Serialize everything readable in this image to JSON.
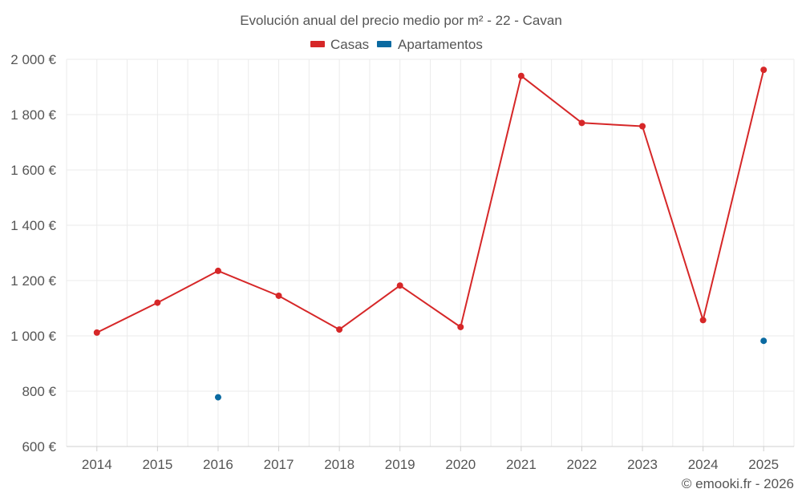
{
  "chart_data": {
    "type": "line",
    "title": "Evolución anual del precio medio por m² - 22 - Cavan",
    "categories": [
      "2014",
      "2015",
      "2016",
      "2017",
      "2018",
      "2019",
      "2020",
      "2021",
      "2022",
      "2023",
      "2024",
      "2025"
    ],
    "series": [
      {
        "name": "Casas",
        "color": "#d62728",
        "values": [
          1012,
          1120,
          1235,
          1145,
          1023,
          1182,
          1032,
          1940,
          1770,
          1758,
          1057,
          1962
        ]
      },
      {
        "name": "Apartamentos",
        "color": "#0a6aa1",
        "values": [
          null,
          null,
          778,
          null,
          null,
          null,
          null,
          null,
          null,
          null,
          null,
          982
        ]
      }
    ],
    "ylim": [
      600,
      2000
    ],
    "yticks": [
      600,
      800,
      1000,
      1200,
      1400,
      1600,
      1800,
      2000
    ],
    "ytick_labels": [
      "600 €",
      "800 €",
      "1 000 €",
      "1 200 €",
      "1 400 €",
      "1 600 €",
      "1 800 €",
      "2 000 €"
    ],
    "grid": true,
    "legend_position": "top-center",
    "credit": "© emooki.fr - 2026"
  }
}
